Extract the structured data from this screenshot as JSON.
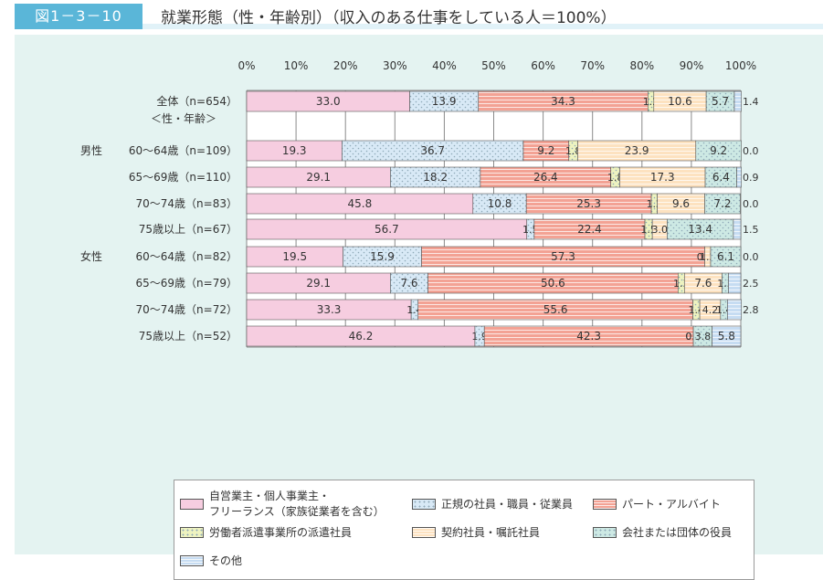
{
  "header": {
    "figure_label": "図1－3－10",
    "title": "就業形態（性・年齢別）（収入のある仕事をしている人＝100%）"
  },
  "chart_data": {
    "type": "bar",
    "orientation": "horizontal",
    "stacked": true,
    "xlim": [
      0,
      100
    ],
    "x_ticks": [
      "0%",
      "10%",
      "20%",
      "30%",
      "40%",
      "50%",
      "60%",
      "70%",
      "80%",
      "90%",
      "100%"
    ],
    "grid": true,
    "legend_position": "bottom",
    "section_labels": {
      "subheading": "＜性・年齢＞",
      "male": "男性",
      "female": "女性"
    },
    "categories": [
      "全体（n=654）",
      "60～64歳（n=109）",
      "65～69歳（n=110）",
      "70～74歳（n=83）",
      "75歳以上（n=67）",
      "60～64歳（n=82）",
      "65～69歳（n=79）",
      "70～74歳（n=72）",
      "75歳以上（n=52）"
    ],
    "series": [
      {
        "name": "自営業主・個人事業主・\nフリーランス（家族従業者を含む）",
        "color": "#f6cde0",
        "pattern": "none",
        "values": [
          33.0,
          19.3,
          29.1,
          45.8,
          56.7,
          19.5,
          29.1,
          33.3,
          46.2
        ]
      },
      {
        "name": "正規の社員・職員・従業員",
        "color": "#d8e9f6",
        "pattern": "dots",
        "values": [
          13.9,
          36.7,
          18.2,
          10.8,
          1.5,
          15.9,
          7.6,
          1.4,
          1.9
        ]
      },
      {
        "name": "パート・アルバイト",
        "color": "#f3a294",
        "pattern": "hlines",
        "values": [
          34.3,
          9.2,
          26.4,
          25.3,
          22.4,
          57.3,
          50.6,
          55.6,
          42.3
        ]
      },
      {
        "name": "労働者派遣事業所の派遣社員",
        "color": "#eef3c0",
        "pattern": "dots",
        "values": [
          1.2,
          1.8,
          1.8,
          1.2,
          1.5,
          0.0,
          1.3,
          1.4,
          0.0
        ]
      },
      {
        "name": "契約社員・嘱託社員",
        "color": "#fde2c0",
        "pattern": "hlines",
        "values": [
          10.6,
          23.9,
          17.3,
          9.6,
          3.0,
          1.2,
          7.6,
          4.2,
          0.0
        ]
      },
      {
        "name": "会社または団体の役員",
        "color": "#cde9e4",
        "pattern": "dots",
        "values": [
          5.7,
          9.2,
          6.4,
          7.2,
          13.4,
          6.1,
          1.3,
          1.4,
          3.8
        ]
      },
      {
        "name": "その他",
        "color": "#c6dcf2",
        "pattern": "hlines",
        "values": [
          1.4,
          0.0,
          0.9,
          0.0,
          1.5,
          0.0,
          2.5,
          2.8,
          5.8
        ]
      }
    ],
    "data_labels": [
      [
        "33.0",
        "13.9",
        "34.3",
        "1.2",
        "10.6",
        "5.7",
        "1.4"
      ],
      [
        "19.3",
        "36.7",
        "9.2",
        "1.8",
        "23.9",
        "9.2",
        "0.0"
      ],
      [
        "29.1",
        "18.2",
        "26.4",
        "1.8",
        "17.3",
        "6.4",
        "0.9"
      ],
      [
        "45.8",
        "10.8",
        "25.3",
        "1.2",
        "9.6",
        "7.2",
        "0.0"
      ],
      [
        "56.7",
        "1.5",
        "22.4",
        "1.5",
        "3.0",
        "13.4",
        "1.5"
      ],
      [
        "19.5",
        "15.9",
        "57.3",
        "0.0",
        "1.2",
        "6.1",
        "0.0"
      ],
      [
        "29.1",
        "7.6",
        "50.6",
        "1.3",
        "7.6",
        "1.3",
        "2.5"
      ],
      [
        "33.3",
        "1.4",
        "55.6",
        "1.4",
        "4.2",
        "1.4",
        "2.8"
      ],
      [
        "46.2",
        "1.9",
        "42.3",
        "0.0",
        "0.0",
        "3.8",
        "5.8"
      ]
    ]
  }
}
